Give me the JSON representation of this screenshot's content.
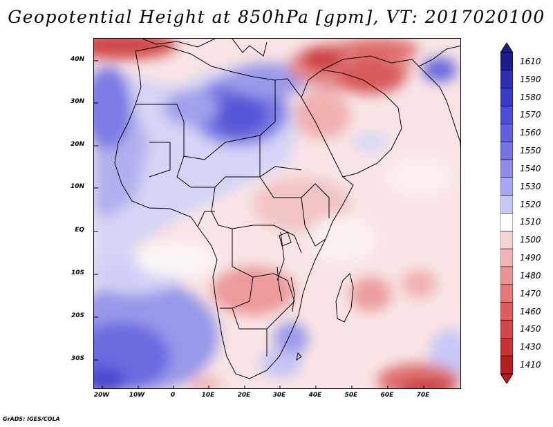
{
  "title": "Geopotential Height at 850hPa [gpm], VT: 2017020100",
  "credit": "GrADS: IGES/COLA",
  "map": {
    "lat_labels": [
      "40N",
      "30N",
      "20N",
      "10N",
      "EQ",
      "10S",
      "20S",
      "30S"
    ],
    "lon_labels": [
      "20W",
      "10W",
      "0",
      "10E",
      "20E",
      "30E",
      "40E",
      "50E",
      "60E",
      "70E"
    ]
  },
  "colorbar": {
    "labels": [
      "1610",
      "1590",
      "1580",
      "1570",
      "1560",
      "1550",
      "1540",
      "1530",
      "1520",
      "1510",
      "1500",
      "1490",
      "1480",
      "1470",
      "1460",
      "1450",
      "1430",
      "1410"
    ],
    "colors": [
      "#1c1c8c",
      "#2e2eb4",
      "#3a3ac8",
      "#4c4cd6",
      "#6060e0",
      "#7474e6",
      "#8c8cec",
      "#a8a8f2",
      "#c8c8f8",
      "#ffffff",
      "#f6d4d4",
      "#f0b4b4",
      "#ea9494",
      "#e47878",
      "#de5c5c",
      "#d44646",
      "#c83232",
      "#b81e1e"
    ]
  }
}
